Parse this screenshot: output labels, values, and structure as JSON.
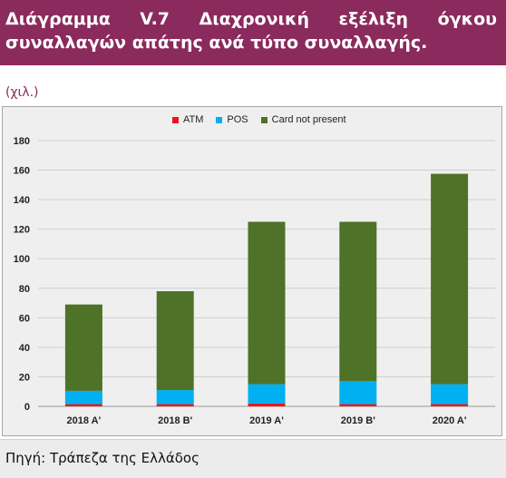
{
  "header": {
    "title": "Διάγραμμα  V.7 Διαχρονική εξέλιξη όγκου συναλλαγών απάτης ανά τύπο συναλλαγής."
  },
  "unit_label": "(χιλ.)",
  "source": "Πηγή: Τράπεζα της Ελλάδος",
  "colors": {
    "header_bg": "#8b2a5c",
    "atm": "#e8171d",
    "pos": "#00b0f0",
    "card_not_present": "#4e7328"
  },
  "chart_data": {
    "type": "bar",
    "stacked": true,
    "categories": [
      "2018 Α'",
      "2018 Β'",
      "2019 Α'",
      "2019 Β'",
      "2020 Α'"
    ],
    "series": [
      {
        "name": "ATM",
        "color": "#e8171d",
        "values": [
          1.5,
          1.5,
          2,
          1.5,
          1.5
        ]
      },
      {
        "name": "POS",
        "color": "#00b0f0",
        "values": [
          9,
          9.5,
          13,
          15.5,
          13.5
        ]
      },
      {
        "name": "Card not present",
        "color": "#4e7328",
        "values": [
          58.5,
          67,
          110,
          108,
          142.5
        ]
      }
    ],
    "ylim": [
      0,
      180
    ],
    "yticks": [
      0,
      20,
      40,
      60,
      80,
      100,
      120,
      140,
      160,
      180
    ],
    "grid": true,
    "legend_position": "top-center",
    "xlabel": "",
    "ylabel": ""
  }
}
